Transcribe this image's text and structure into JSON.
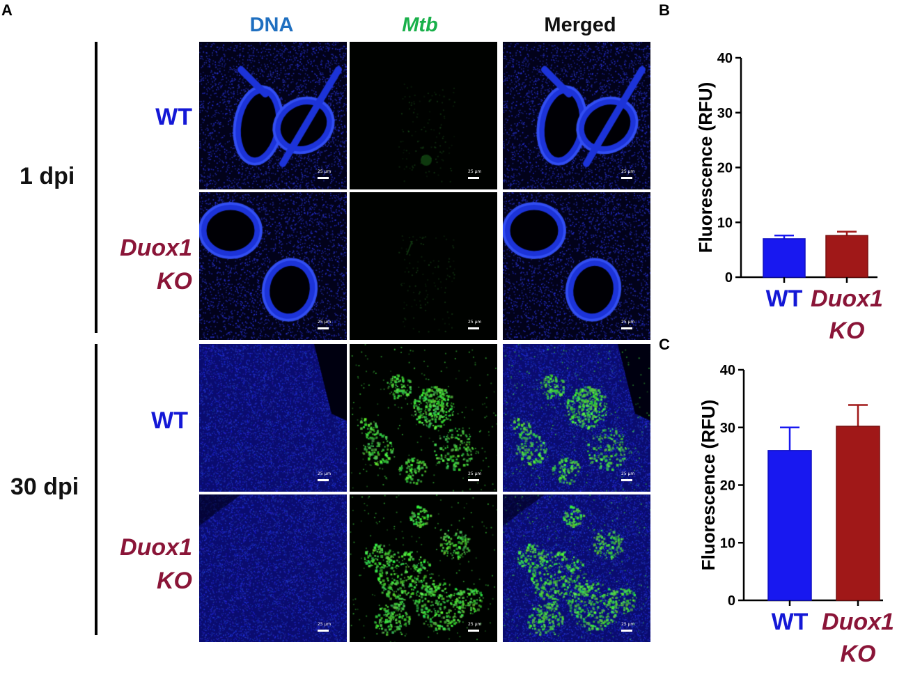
{
  "panel_letters": {
    "a": "A",
    "b": "B",
    "c": "C"
  },
  "columns": [
    {
      "label": "DNA",
      "color": "#1f6fc0",
      "italic": false
    },
    {
      "label": "Mtb",
      "color": "#19b04a",
      "italic": true
    },
    {
      "label": "Merged",
      "color": "#111111",
      "italic": false
    }
  ],
  "time_points": {
    "early": "1 dpi",
    "late": "30 dpi"
  },
  "row_labels": {
    "wt": "WT",
    "ko_line1": "Duox1",
    "ko_line2": "KO"
  },
  "scale_bar_label": "25 μm",
  "colors": {
    "wt": "#1818f0",
    "ko": "#a01818",
    "ko_text": "#8a1538",
    "wt_text": "#1418d6"
  },
  "chart_data": [
    {
      "panel": "B",
      "type": "bar",
      "categories": [
        "WT",
        "Duox1 KO"
      ],
      "values": [
        7.0,
        7.6
      ],
      "errors": [
        0.6,
        0.7
      ],
      "ylabel": "Fluorescence (RFU)",
      "ylim": [
        0,
        40
      ],
      "yticks": [
        "0",
        "10",
        "20",
        "30",
        "40"
      ],
      "category_labels": [
        [
          "WT"
        ],
        [
          "Duox1",
          "KO"
        ]
      ]
    },
    {
      "panel": "C",
      "type": "bar",
      "categories": [
        "WT",
        "Duox1 KO"
      ],
      "values": [
        26.0,
        30.2
      ],
      "errors": [
        4.0,
        3.7
      ],
      "ylabel": "Fluorescence (RFU)",
      "ylim": [
        0,
        40
      ],
      "yticks": [
        "0",
        "10",
        "20",
        "30",
        "40"
      ],
      "category_labels": [
        [
          "WT"
        ],
        [
          "Duox1",
          "KO"
        ]
      ]
    }
  ]
}
